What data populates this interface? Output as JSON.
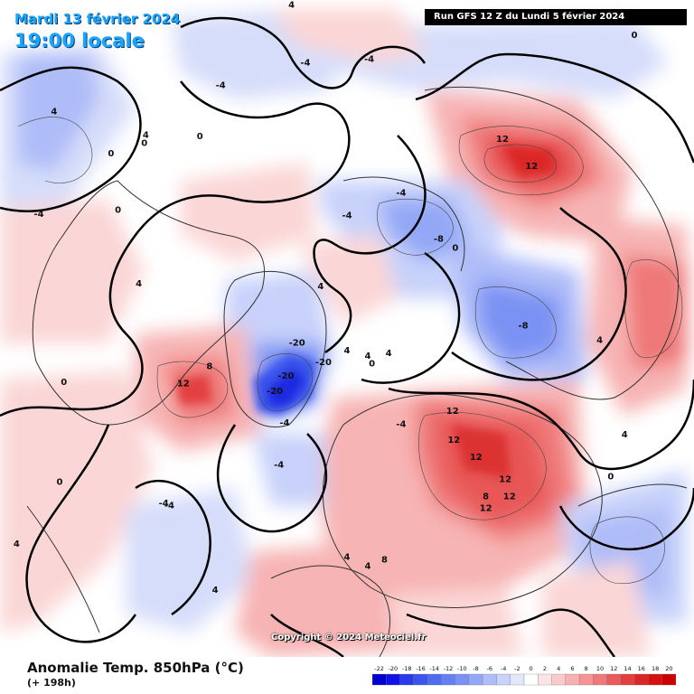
{
  "header": {
    "date": "Mardi 13 février 2024",
    "time": "19:00 locale",
    "run": "Run GFS 12 Z du Lundi 5 février 2024"
  },
  "footer": {
    "parameter": "Anomalie Temp. 850hPa (°C)",
    "lead_time": "(+ 198h)",
    "copyright": "Copyright © 2024 Meteociel.fr"
  },
  "legend": {
    "ticks": [
      "-22",
      "-20",
      "-18",
      "-16",
      "-14",
      "-12",
      "-10",
      "-8",
      "-6",
      "-4",
      "-2",
      "0",
      "2",
      "4",
      "6",
      "8",
      "10",
      "12",
      "14",
      "16",
      "18",
      "20"
    ],
    "colors": [
      "#0000d0",
      "#1010e8",
      "#2a3ae8",
      "#3a55ec",
      "#4f6cef",
      "#6480f1",
      "#7a92f3",
      "#93a7f6",
      "#aebcf8",
      "#c8d2fa",
      "#e2e7fc",
      "#ffffff",
      "#fde4e4",
      "#fbcaca",
      "#f8b0b0",
      "#f49494",
      "#ef7878",
      "#ea5b5b",
      "#e34040",
      "#dc2626",
      "#d51010",
      "#cc0000"
    ]
  },
  "map": {
    "colors": {
      "sea": "#ffffff",
      "coast": "#222222",
      "contour": "#000000",
      "warm_light": "#fbd6d6",
      "warm_mid": "#f49a9a",
      "warm_strong": "#e85656",
      "cold_light": "#d6ddfa",
      "cold_mid": "#93a7f6",
      "cold_strong": "#4f6cef"
    },
    "labels": [
      {
        "text": "12",
        "u": 0.724,
        "v": 0.216
      },
      {
        "text": "12",
        "u": 0.766,
        "v": 0.257
      },
      {
        "text": "12",
        "u": 0.264,
        "v": 0.588
      },
      {
        "text": "12",
        "u": 0.652,
        "v": 0.63
      },
      {
        "text": "12",
        "u": 0.654,
        "v": 0.674
      },
      {
        "text": "12",
        "u": 0.686,
        "v": 0.7
      },
      {
        "text": "12",
        "u": 0.728,
        "v": 0.734
      },
      {
        "text": "12",
        "u": 0.734,
        "v": 0.76
      },
      {
        "text": "12",
        "u": 0.7,
        "v": 0.778
      },
      {
        "text": "8",
        "u": 0.302,
        "v": 0.562
      },
      {
        "text": "8",
        "u": 0.7,
        "v": 0.76
      },
      {
        "text": "8",
        "u": 0.554,
        "v": 0.856
      },
      {
        "text": "-20",
        "u": 0.428,
        "v": 0.526
      },
      {
        "text": "-20",
        "u": 0.412,
        "v": 0.576
      },
      {
        "text": "-20",
        "u": 0.396,
        "v": 0.6
      },
      {
        "text": "-20",
        "u": 0.466,
        "v": 0.556
      },
      {
        "text": "-8",
        "u": 0.632,
        "v": 0.368
      },
      {
        "text": "-8",
        "u": 0.754,
        "v": 0.5
      },
      {
        "text": "-4",
        "u": 0.318,
        "v": 0.134
      },
      {
        "text": "-4",
        "u": 0.44,
        "v": 0.1
      },
      {
        "text": "-4",
        "u": 0.532,
        "v": 0.094
      },
      {
        "text": "-4",
        "u": 0.578,
        "v": 0.298
      },
      {
        "text": "-4",
        "u": 0.5,
        "v": 0.332
      },
      {
        "text": "-4",
        "u": 0.236,
        "v": 0.77
      },
      {
        "text": "-4",
        "u": 0.244,
        "v": 0.774
      },
      {
        "text": "-4",
        "u": 0.402,
        "v": 0.712
      },
      {
        "text": "-4",
        "u": 0.41,
        "v": 0.648
      },
      {
        "text": "-4",
        "u": 0.578,
        "v": 0.65
      },
      {
        "text": "-4",
        "u": 0.056,
        "v": 0.33
      },
      {
        "text": "4",
        "u": 0.42,
        "v": 0.012
      },
      {
        "text": "4",
        "u": 0.078,
        "v": 0.174
      },
      {
        "text": "4",
        "u": 0.21,
        "v": 0.21
      },
      {
        "text": "4",
        "u": 0.2,
        "v": 0.436
      },
      {
        "text": "4",
        "u": 0.462,
        "v": 0.44
      },
      {
        "text": "4",
        "u": 0.5,
        "v": 0.538
      },
      {
        "text": "4",
        "u": 0.53,
        "v": 0.546
      },
      {
        "text": "4",
        "u": 0.56,
        "v": 0.542
      },
      {
        "text": "4",
        "u": 0.31,
        "v": 0.902
      },
      {
        "text": "4",
        "u": 0.5,
        "v": 0.852
      },
      {
        "text": "4",
        "u": 0.9,
        "v": 0.666
      },
      {
        "text": "4",
        "u": 0.864,
        "v": 0.522
      },
      {
        "text": "4",
        "u": 0.024,
        "v": 0.832
      },
      {
        "text": "4",
        "u": 0.53,
        "v": 0.866
      },
      {
        "text": "0",
        "u": 0.288,
        "v": 0.212
      },
      {
        "text": "0",
        "u": 0.208,
        "v": 0.222
      },
      {
        "text": "0",
        "u": 0.16,
        "v": 0.238
      },
      {
        "text": "0",
        "u": 0.914,
        "v": 0.058
      },
      {
        "text": "0",
        "u": 0.17,
        "v": 0.324
      },
      {
        "text": "0",
        "u": 0.092,
        "v": 0.586
      },
      {
        "text": "0",
        "u": 0.536,
        "v": 0.558
      },
      {
        "text": "0",
        "u": 0.656,
        "v": 0.382
      },
      {
        "text": "0",
        "u": 0.88,
        "v": 0.73
      },
      {
        "text": "0",
        "u": 0.086,
        "v": 0.738
      }
    ]
  }
}
